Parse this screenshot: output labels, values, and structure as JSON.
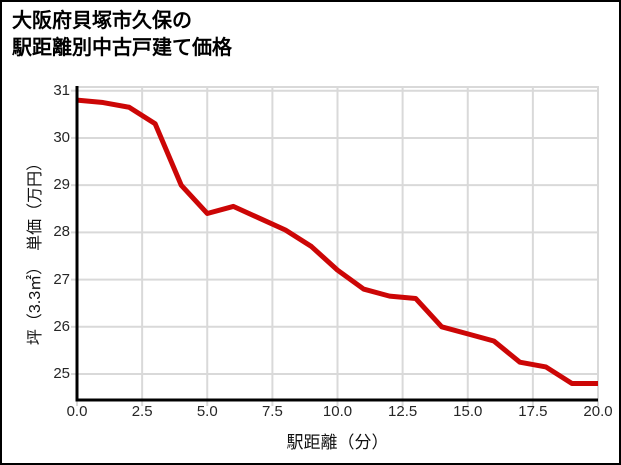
{
  "chart": {
    "title_line1": "大阪府貝塚市久保の",
    "title_line2": "駅距離別中古戸建て価格",
    "xlabel": "駅距離（分）",
    "ylabel": "坪（3.3㎡）　単価（万円）"
  },
  "chart_data": {
    "type": "line",
    "title": "大阪府貝塚市久保の駅距離別中古戸建て価格",
    "xlabel": "駅距離（分）",
    "ylabel": "坪（3.3㎡）単価（万円）",
    "x": [
      0,
      1,
      2,
      3,
      4,
      5,
      6,
      7,
      8,
      9,
      10,
      11,
      12,
      13,
      14,
      15,
      16,
      17,
      18,
      19,
      20
    ],
    "y": [
      30.8,
      30.75,
      30.65,
      30.3,
      29.0,
      28.4,
      28.55,
      28.3,
      28.05,
      27.7,
      27.2,
      26.8,
      26.65,
      26.6,
      26.0,
      25.85,
      25.7,
      25.25,
      25.15,
      24.8,
      24.8
    ],
    "xticks": [
      0,
      2.5,
      5,
      7.5,
      10,
      12.5,
      15,
      17.5,
      20
    ],
    "xtick_labels": [
      "0.0",
      "2.5",
      "5.0",
      "7.5",
      "10.0",
      "12.5",
      "15.0",
      "17.5",
      "20.0"
    ],
    "yticks": [
      25,
      26,
      27,
      28,
      29,
      30,
      31
    ],
    "ytick_labels": [
      "25",
      "26",
      "27",
      "28",
      "29",
      "30",
      "31"
    ],
    "xlim": [
      0,
      20
    ],
    "ylim": [
      24.45,
      31.1
    ],
    "grid": true,
    "legend": false,
    "line_color": "#cc0606",
    "line_width": 5,
    "grid_color": "#d9d9d9",
    "axis_color": "#000000",
    "tick_label_color": "#262626"
  }
}
